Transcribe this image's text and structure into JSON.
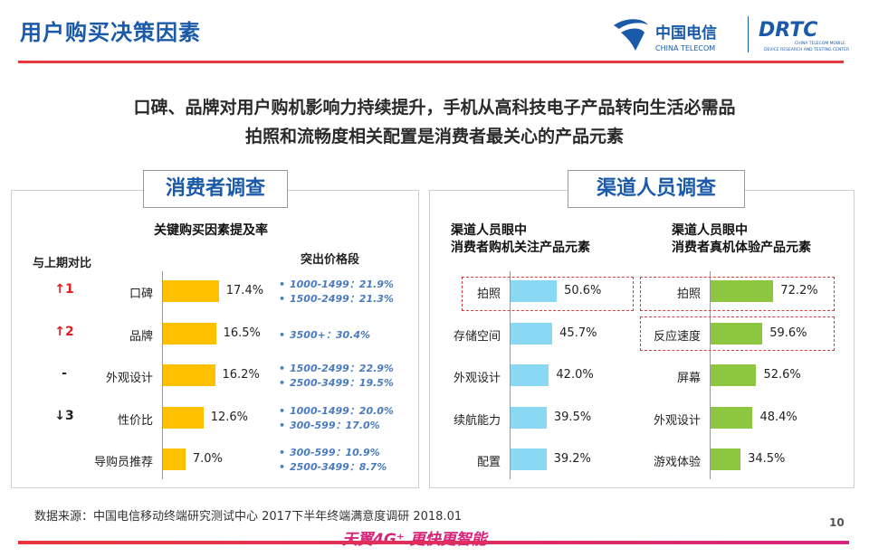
{
  "header": {
    "title": "用户购买决策因素",
    "brand_ct_cn": "中国电信",
    "brand_ct_en": "CHINA TELECOM",
    "brand_dr": "DRTC",
    "brand_dr_sub1": "CHINA TELECOM MOBILE",
    "brand_dr_sub2": "DEVICE RESEARCH AND TESTING CENTER"
  },
  "headline": {
    "line1": "口碑、品牌对用户购机影响力持续提升，手机从高科技电子产品转向生活必需品",
    "line2": "拍照和流畅度相关配置是消费者最关心的产品元素"
  },
  "colors": {
    "accent_blue": "#1a5aa8",
    "accent_red": "#e8383d",
    "bar_yellow": "#ffc000",
    "bar_blue": "#89d9f5",
    "bar_green": "#8dc63f",
    "price_blue": "#4a7bbd"
  },
  "left_panel": {
    "label": "消费者调查",
    "chart_title": "关键购买因素提及率",
    "change_header": "与上期对比",
    "price_header": "突出价格段",
    "changes": [
      "↑1",
      "↑2",
      "-",
      "↓3",
      ""
    ],
    "price_segments": [
      [
        "1000-1499：21.9%",
        "1500-2499：21.3%"
      ],
      [
        "3500+：30.4%"
      ],
      [
        "1500-2499：22.9%",
        "2500-3499：19.5%"
      ],
      [
        "1000-1499：20.0%",
        "300-599：17.0%"
      ],
      [
        "300-599：10.9%",
        "2500-3499：8.7%"
      ]
    ]
  },
  "right_panel": {
    "label": "渠道人员调查",
    "chart_a_title_1": "渠道人员眼中",
    "chart_a_title_2": "消费者购机关注产品元素",
    "chart_b_title_1": "渠道人员眼中",
    "chart_b_title_2": "消费者真机体验产品元素"
  },
  "chart_data": [
    {
      "type": "bar",
      "orientation": "horizontal",
      "title": "关键购买因素提及率",
      "categories": [
        "口碑",
        "品牌",
        "外观设计",
        "性价比",
        "导购员推荐"
      ],
      "values": [
        17.4,
        16.5,
        16.2,
        12.6,
        7.0
      ],
      "labels": [
        "17.4%",
        "16.5%",
        "16.2%",
        "12.6%",
        "7.0%"
      ],
      "color": "#ffc000"
    },
    {
      "type": "bar",
      "orientation": "horizontal",
      "title": "渠道人员眼中 消费者购机关注产品元素",
      "categories": [
        "拍照",
        "存储空间",
        "外观设计",
        "续航能力",
        "配置"
      ],
      "values": [
        50.6,
        45.7,
        42.0,
        39.5,
        39.2
      ],
      "labels": [
        "50.6%",
        "45.7%",
        "42.0%",
        "39.5%",
        "39.2%"
      ],
      "color": "#89d9f5"
    },
    {
      "type": "bar",
      "orientation": "horizontal",
      "title": "渠道人员眼中 消费者真机体验产品元素",
      "categories": [
        "拍照",
        "反应速度",
        "屏幕",
        "外观设计",
        "游戏体验"
      ],
      "values": [
        72.2,
        59.6,
        52.6,
        48.4,
        34.5
      ],
      "labels": [
        "72.2%",
        "59.6%",
        "52.6%",
        "48.4%",
        "34.5%"
      ],
      "color": "#8dc63f"
    }
  ],
  "footer": {
    "source": "数据来源：中国电信移动终端研究测试中心 2017下半年终端满意度调研 2018.01",
    "page": "10",
    "slogan": "天翼4G⁺ 更快更智能"
  }
}
